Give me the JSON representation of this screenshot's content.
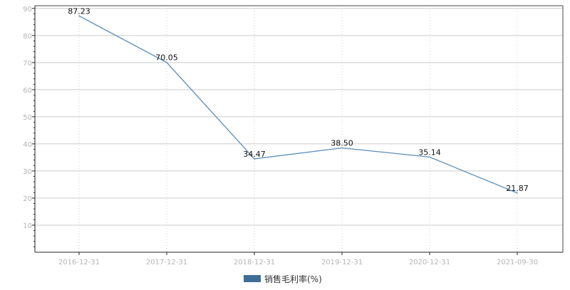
{
  "chart_data": {
    "type": "line",
    "categories": [
      "2016-12-31",
      "2017-12-31",
      "2018-12-31",
      "2019-12-31",
      "2020-12-31",
      "2021-09-30"
    ],
    "series": [
      {
        "name": "销售毛利率(%)",
        "values": [
          87.23,
          70.05,
          34.47,
          38.5,
          35.14,
          21.87
        ],
        "labels": [
          "87.23",
          "70.05",
          "34.47",
          "38.50",
          "35.14",
          "21.87"
        ],
        "color": "#5b8db8"
      }
    ],
    "yticks": [
      "10",
      "20",
      "30",
      "40",
      "50",
      "60",
      "70",
      "80",
      "90"
    ],
    "ylim": [
      0,
      91
    ],
    "title": "",
    "xlabel": "",
    "ylabel": "",
    "grid": true,
    "legend": {
      "placement": "bottom-center",
      "swatch_color": "#3f6e95"
    },
    "colors": {
      "grid": "#cccccc",
      "axis": "#222222",
      "ticks": "#b4b4b4"
    }
  }
}
